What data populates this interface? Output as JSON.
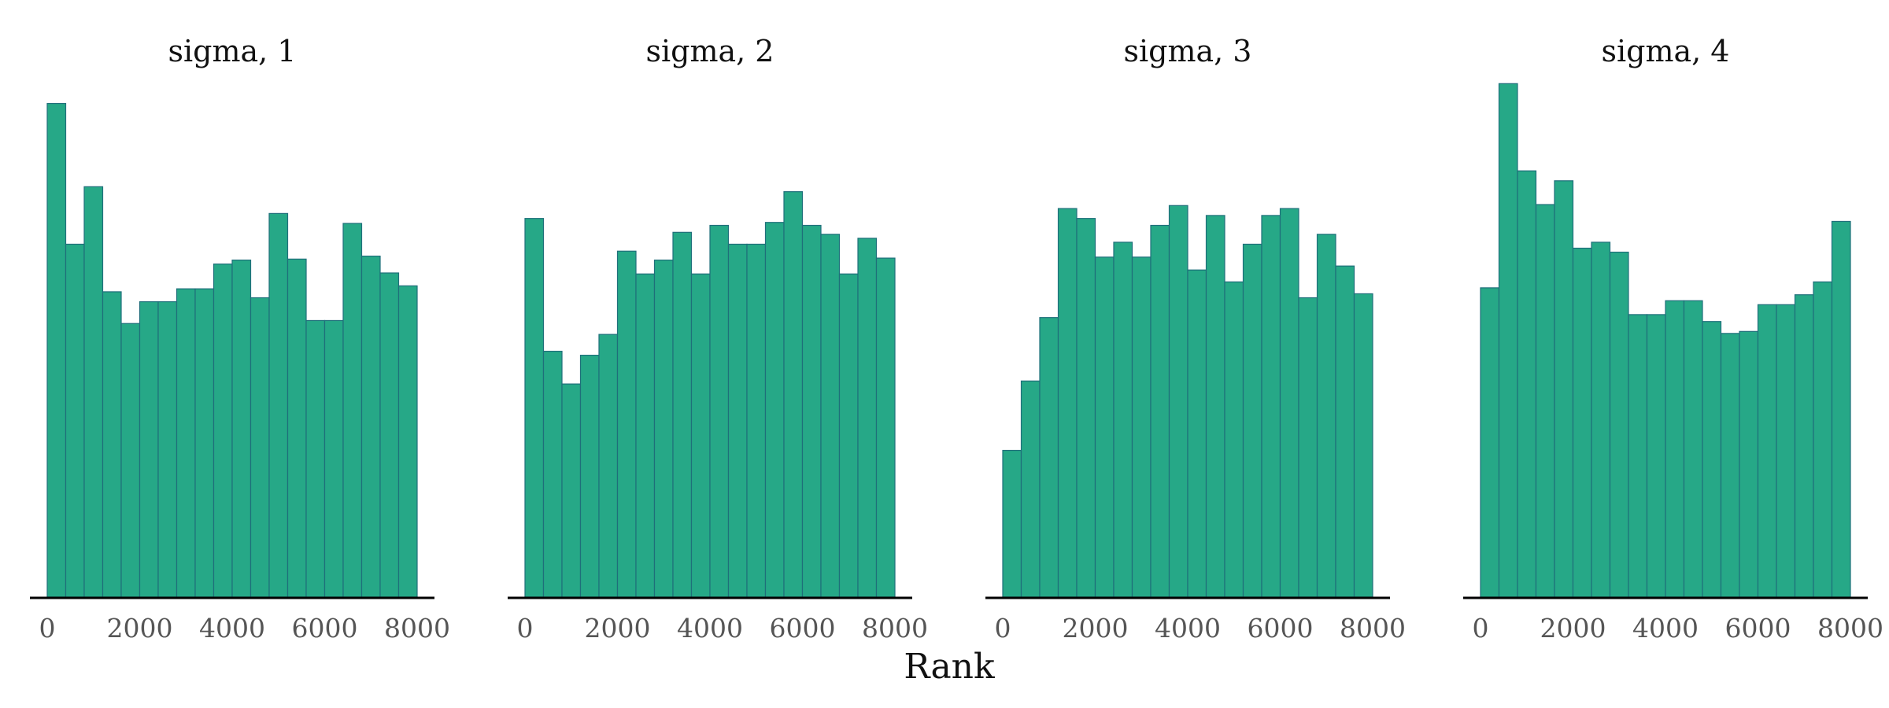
{
  "chart_data": {
    "type": "bar",
    "xlabel": "Rank",
    "bar_color": "#26A887",
    "bar_edge_color": "#1F6F7A",
    "xlim": [
      0,
      8000
    ],
    "x_ticks": [
      0,
      2000,
      4000,
      6000,
      8000
    ],
    "bin_width": 400,
    "bin_starts": [
      0,
      400,
      800,
      1200,
      1600,
      2000,
      2400,
      2800,
      3200,
      3600,
      4000,
      4400,
      4800,
      5200,
      5600,
      6000,
      6400,
      6800,
      7200,
      7600
    ],
    "panels": [
      {
        "title": "sigma, 1",
        "values": [
          498,
          356,
          414,
          308,
          276,
          298,
          298,
          311,
          311,
          336,
          340,
          302,
          387,
          341,
          279,
          279,
          377,
          344,
          327,
          314
        ]
      },
      {
        "title": "sigma, 2",
        "values": [
          382,
          248,
          215,
          244,
          265,
          349,
          326,
          340,
          368,
          326,
          375,
          356,
          356,
          378,
          409,
          375,
          366,
          326,
          362,
          342
        ]
      },
      {
        "title": "sigma, 3",
        "values": [
          148,
          218,
          282,
          392,
          382,
          343,
          358,
          343,
          375,
          395,
          330,
          385,
          318,
          356,
          385,
          392,
          302,
          366,
          334,
          306
        ]
      },
      {
        "title": "sigma, 4",
        "values": [
          312,
          518,
          430,
          396,
          420,
          352,
          358,
          348,
          285,
          285,
          299,
          299,
          278,
          266,
          268,
          295,
          295,
          305,
          318,
          379
        ]
      }
    ]
  }
}
